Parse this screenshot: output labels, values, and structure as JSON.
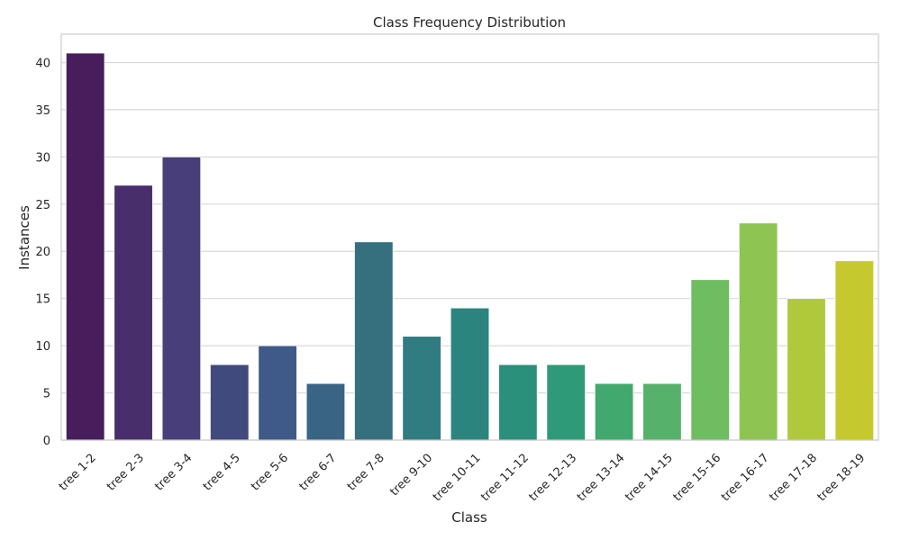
{
  "chart_data": {
    "type": "bar",
    "title": "Class Frequency Distribution",
    "xlabel": "Class",
    "ylabel": "Instances",
    "ylim": [
      0,
      43
    ],
    "yticks": [
      0,
      5,
      10,
      15,
      20,
      25,
      30,
      35,
      40
    ],
    "grid": "horizontal",
    "categories": [
      "tree 1-2",
      "tree 2-3",
      "tree 3-4",
      "tree 4-5",
      "tree 5-6",
      "tree 6-7",
      "tree 7-8",
      "tree 9-10",
      "tree 10-11",
      "tree 11-12",
      "tree 12-13",
      "tree 13-14",
      "tree 14-15",
      "tree 15-16",
      "tree 16-17",
      "tree 17-18",
      "tree 18-19"
    ],
    "values": [
      41,
      27,
      30,
      8,
      10,
      6,
      21,
      11,
      14,
      8,
      8,
      6,
      6,
      17,
      23,
      15,
      19
    ],
    "colors": [
      "#471d5b",
      "#482f6b",
      "#473e7a",
      "#404a7c",
      "#3f5a88",
      "#3a6484",
      "#36707f",
      "#307c80",
      "#2c847e",
      "#2a8f7b",
      "#2f9a77",
      "#41a96e",
      "#56b26a",
      "#6ebd60",
      "#8ec552",
      "#b0c93c",
      "#c6c92d"
    ]
  }
}
